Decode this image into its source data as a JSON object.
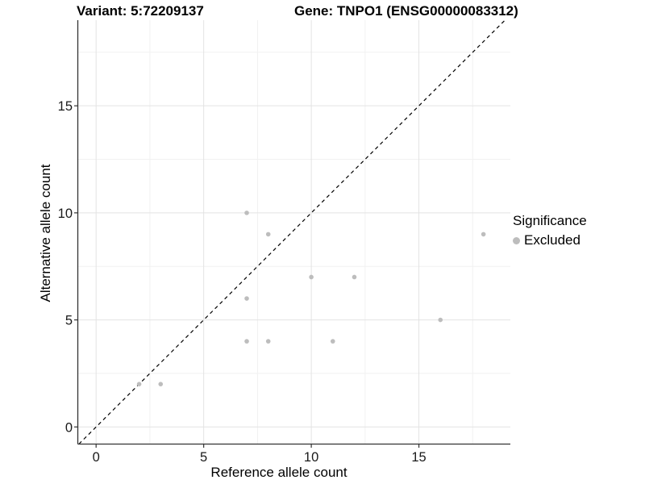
{
  "header": {
    "variant_title": "Variant: 5:72209137",
    "gene_title": "Gene: TNPO1 (ENSG00000083312)"
  },
  "axes": {
    "x_label": "Reference allele count",
    "y_label": "Alternative allele count"
  },
  "legend": {
    "title": "Significance",
    "entries": [
      {
        "label": "Excluded",
        "color": "#bdbdbd"
      }
    ]
  },
  "chart_data": {
    "type": "scatter",
    "title": "Variant: 5:72209137 / Gene: TNPO1 (ENSG00000083312)",
    "xlabel": "Reference allele count",
    "ylabel": "Alternative allele count",
    "xlim": [
      -0.85,
      19.25
    ],
    "ylim": [
      -0.8,
      19.0
    ],
    "x_ticks": [
      0,
      5,
      10,
      15
    ],
    "y_ticks": [
      0,
      5,
      10,
      15
    ],
    "x_minor_ticks": [
      2.5,
      7.5,
      12.5,
      17.5
    ],
    "y_minor_ticks": [
      2.5,
      7.5,
      12.5,
      17.5
    ],
    "grid": "major and minor, light gray on white",
    "legend_position": "right",
    "series": [
      {
        "name": "Excluded",
        "color": "#bdbdbd",
        "marker": "circle",
        "points": [
          [
            2,
            2
          ],
          [
            3,
            2
          ],
          [
            7,
            4
          ],
          [
            7,
            6
          ],
          [
            7,
            10
          ],
          [
            8,
            4
          ],
          [
            8,
            9
          ],
          [
            10,
            7
          ],
          [
            11,
            4
          ],
          [
            12,
            7
          ],
          [
            16,
            5
          ],
          [
            18,
            9
          ]
        ]
      }
    ],
    "reference_line": {
      "kind": "identity y=x",
      "style": "dashed",
      "color": "#000000"
    }
  },
  "style": {
    "point_color": "#bdbdbd",
    "grid_major_color": "#e3e3e3",
    "grid_minor_color": "#f1f1f1",
    "axis_line_color": "#333333",
    "tick_label_color": "#1a1a1a",
    "background": "#ffffff"
  }
}
